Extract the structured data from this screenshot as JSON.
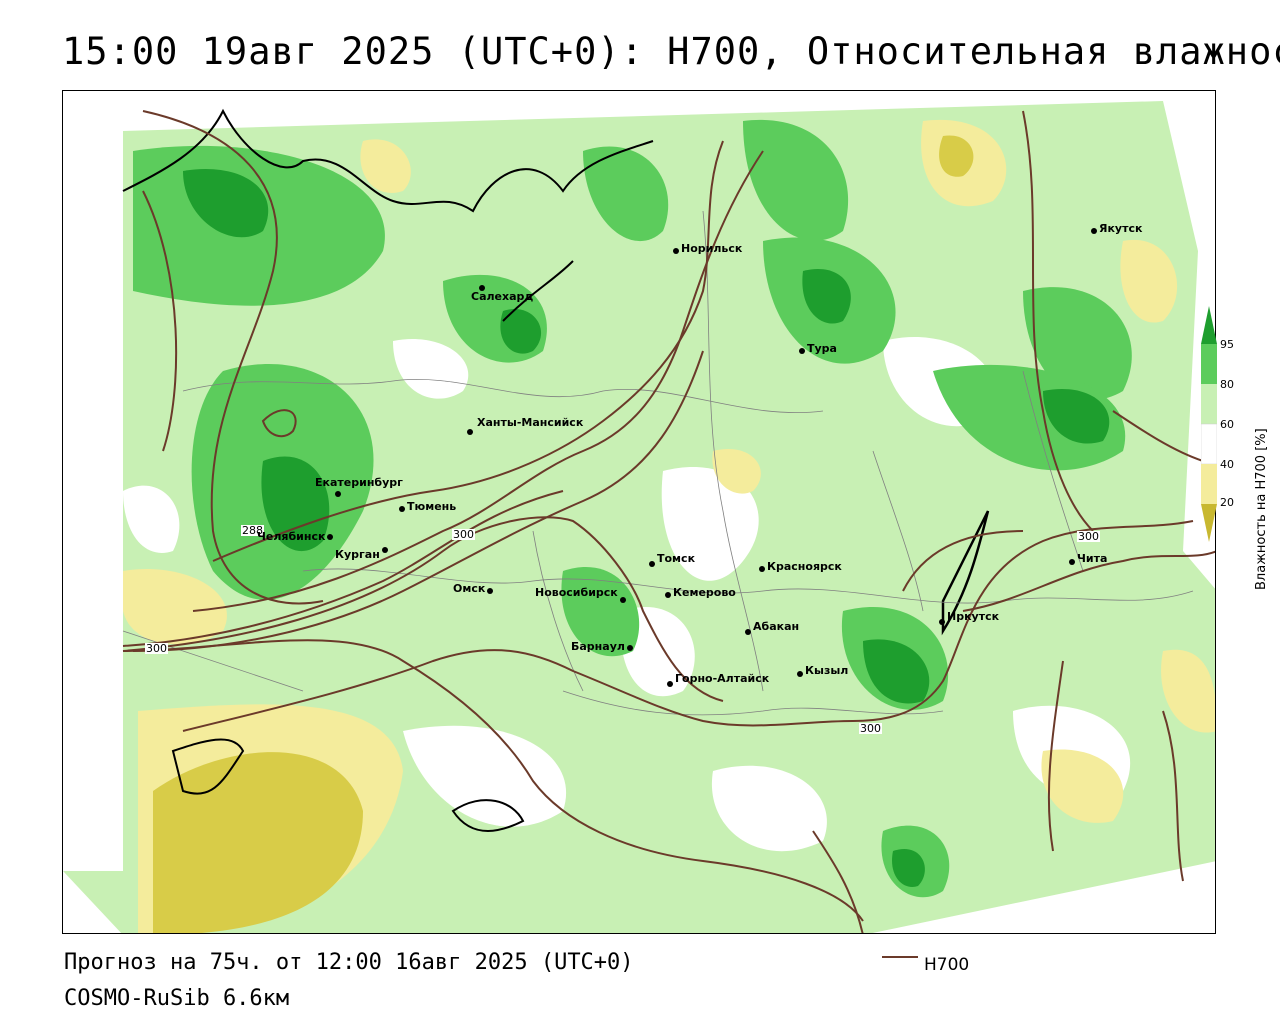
{
  "header": {
    "title": "15:00 19авг 2025 (UTC+0): H700, Относительная влажность"
  },
  "footer": {
    "forecast": "Прогноз на 75ч. от 12:00 16авг 2025 (UTC+0)",
    "model": "COSMO-RuSib 6.6км"
  },
  "legend": {
    "line_label": "H700",
    "line_color": "#6b3a2a"
  },
  "colorbar": {
    "title": "Влажность на H700 [%]",
    "ticks": [
      "95",
      "80",
      "60",
      "40",
      "20"
    ],
    "colors": {
      "very_dry": "#c8b830",
      "dry": "#f4ec9c",
      "mid": "#ffffff",
      "moist": "#c8f0b4",
      "wet": "#5ccc5c",
      "very_wet": "#1e9e2e"
    }
  },
  "contours": {
    "labels": [
      "288",
      "300",
      "300",
      "300",
      "300"
    ]
  },
  "cities": [
    {
      "name": "Норильск"
    },
    {
      "name": "Якутск"
    },
    {
      "name": "Салехард"
    },
    {
      "name": "Тура"
    },
    {
      "name": "Ханты-Мансийск"
    },
    {
      "name": "Екатеринбург"
    },
    {
      "name": "Тюмень"
    },
    {
      "name": "Челябинск"
    },
    {
      "name": "Курган"
    },
    {
      "name": "Омск"
    },
    {
      "name": "Новосибирск"
    },
    {
      "name": "Томск"
    },
    {
      "name": "Кемерово"
    },
    {
      "name": "Красноярск"
    },
    {
      "name": "Барнаул"
    },
    {
      "name": "Абакан"
    },
    {
      "name": "Горно-Алтайск"
    },
    {
      "name": "Кызыл"
    },
    {
      "name": "Иркутск"
    },
    {
      "name": "Чита"
    }
  ]
}
